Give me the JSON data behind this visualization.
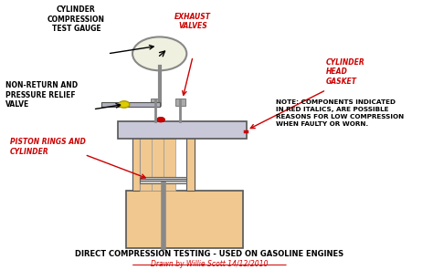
{
  "bg_color": "#ffffff",
  "title": "DIRECT COMPRESSION TESTING - USED ON GASOLINE ENGINES",
  "subtitle": "Drawn by Willie Scott 14/12/2010",
  "note_text": "NOTE: COMPONENTS INDICATED\nIN RED ITALICS, ARE POSSIBLE\nREASONS FOR LOW COMPRESSION\nWHEN FAULTY OR WORN.",
  "engine_colors": {
    "cylinder_head": "#c8c8d8",
    "cylinder_body": "#f0c890",
    "engine_block": "#f0c890",
    "piston": "#d0d0d0",
    "gauge_circle": "#f0f0e0",
    "gauge_border": "#888888",
    "valve_stem": "#888888",
    "red_dot": "#cc0000",
    "yellow_dot": "#ddcc00"
  }
}
